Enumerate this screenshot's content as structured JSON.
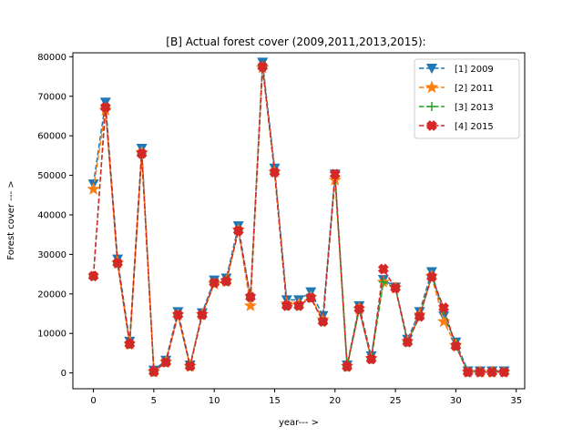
{
  "chart_data": {
    "type": "line",
    "title": "[B] Actual forest cover (2009,2011,2013,2015):",
    "xlabel": "year--- >",
    "ylabel": "Forest cover --- >",
    "xlim": [
      -1.7,
      35.7
    ],
    "ylim": [
      -4000,
      81000
    ],
    "xticks": [
      0,
      5,
      10,
      15,
      20,
      25,
      30,
      35
    ],
    "yticks": [
      0,
      10000,
      20000,
      30000,
      40000,
      50000,
      60000,
      70000,
      80000
    ],
    "grid": false,
    "legend_position": "top-right",
    "x": [
      0,
      1,
      2,
      3,
      4,
      5,
      6,
      7,
      8,
      9,
      10,
      11,
      12,
      13,
      14,
      15,
      16,
      17,
      18,
      19,
      20,
      21,
      22,
      23,
      24,
      25,
      26,
      27,
      28,
      29,
      30,
      31,
      32,
      33,
      34
    ],
    "series": [
      {
        "name": "[1] 2009",
        "color": "#1f77b4",
        "marker": "triangle-down",
        "values": [
          47800,
          68500,
          28800,
          8000,
          56800,
          700,
          3200,
          15500,
          2000,
          15200,
          23500,
          24000,
          37200,
          18800,
          78600,
          51800,
          18500,
          18500,
          20500,
          14500,
          50300,
          2000,
          17000,
          4300,
          23600,
          21700,
          8500,
          15500,
          25600,
          14400,
          7800,
          500,
          500,
          500,
          500
        ]
      },
      {
        "name": "[2] 2011",
        "color": "#ff7f0e",
        "marker": "star",
        "values": [
          46500,
          66500,
          27800,
          7300,
          55800,
          300,
          2800,
          14700,
          1700,
          14800,
          22500,
          23200,
          36200,
          17000,
          77200,
          50800,
          17500,
          17500,
          19200,
          13500,
          48800,
          1700,
          16200,
          3700,
          23000,
          21500,
          8000,
          14700,
          24500,
          13000,
          7000,
          200,
          200,
          200,
          200
        ]
      },
      {
        "name": "[3] 2013",
        "color": "#2ca02c",
        "marker": "plus",
        "values": [
          24500,
          67200,
          27800,
          7300,
          55500,
          300,
          2700,
          14700,
          1700,
          14700,
          22800,
          23200,
          36000,
          19200,
          77500,
          50800,
          17000,
          17000,
          19000,
          13000,
          49800,
          1600,
          16000,
          3500,
          23000,
          21500,
          7800,
          14300,
          24300,
          16000,
          6800,
          200,
          200,
          200,
          200
        ]
      },
      {
        "name": "[4] 2015",
        "color": "#d62728",
        "marker": "x",
        "values": [
          24500,
          67200,
          27800,
          7300,
          55500,
          300,
          2700,
          14700,
          1700,
          14700,
          22800,
          23200,
          36000,
          19200,
          77500,
          50800,
          17000,
          17000,
          19000,
          13000,
          50300,
          1600,
          16200,
          3500,
          26300,
          21500,
          7800,
          14300,
          24300,
          16500,
          6800,
          200,
          200,
          200,
          200
        ]
      }
    ]
  }
}
